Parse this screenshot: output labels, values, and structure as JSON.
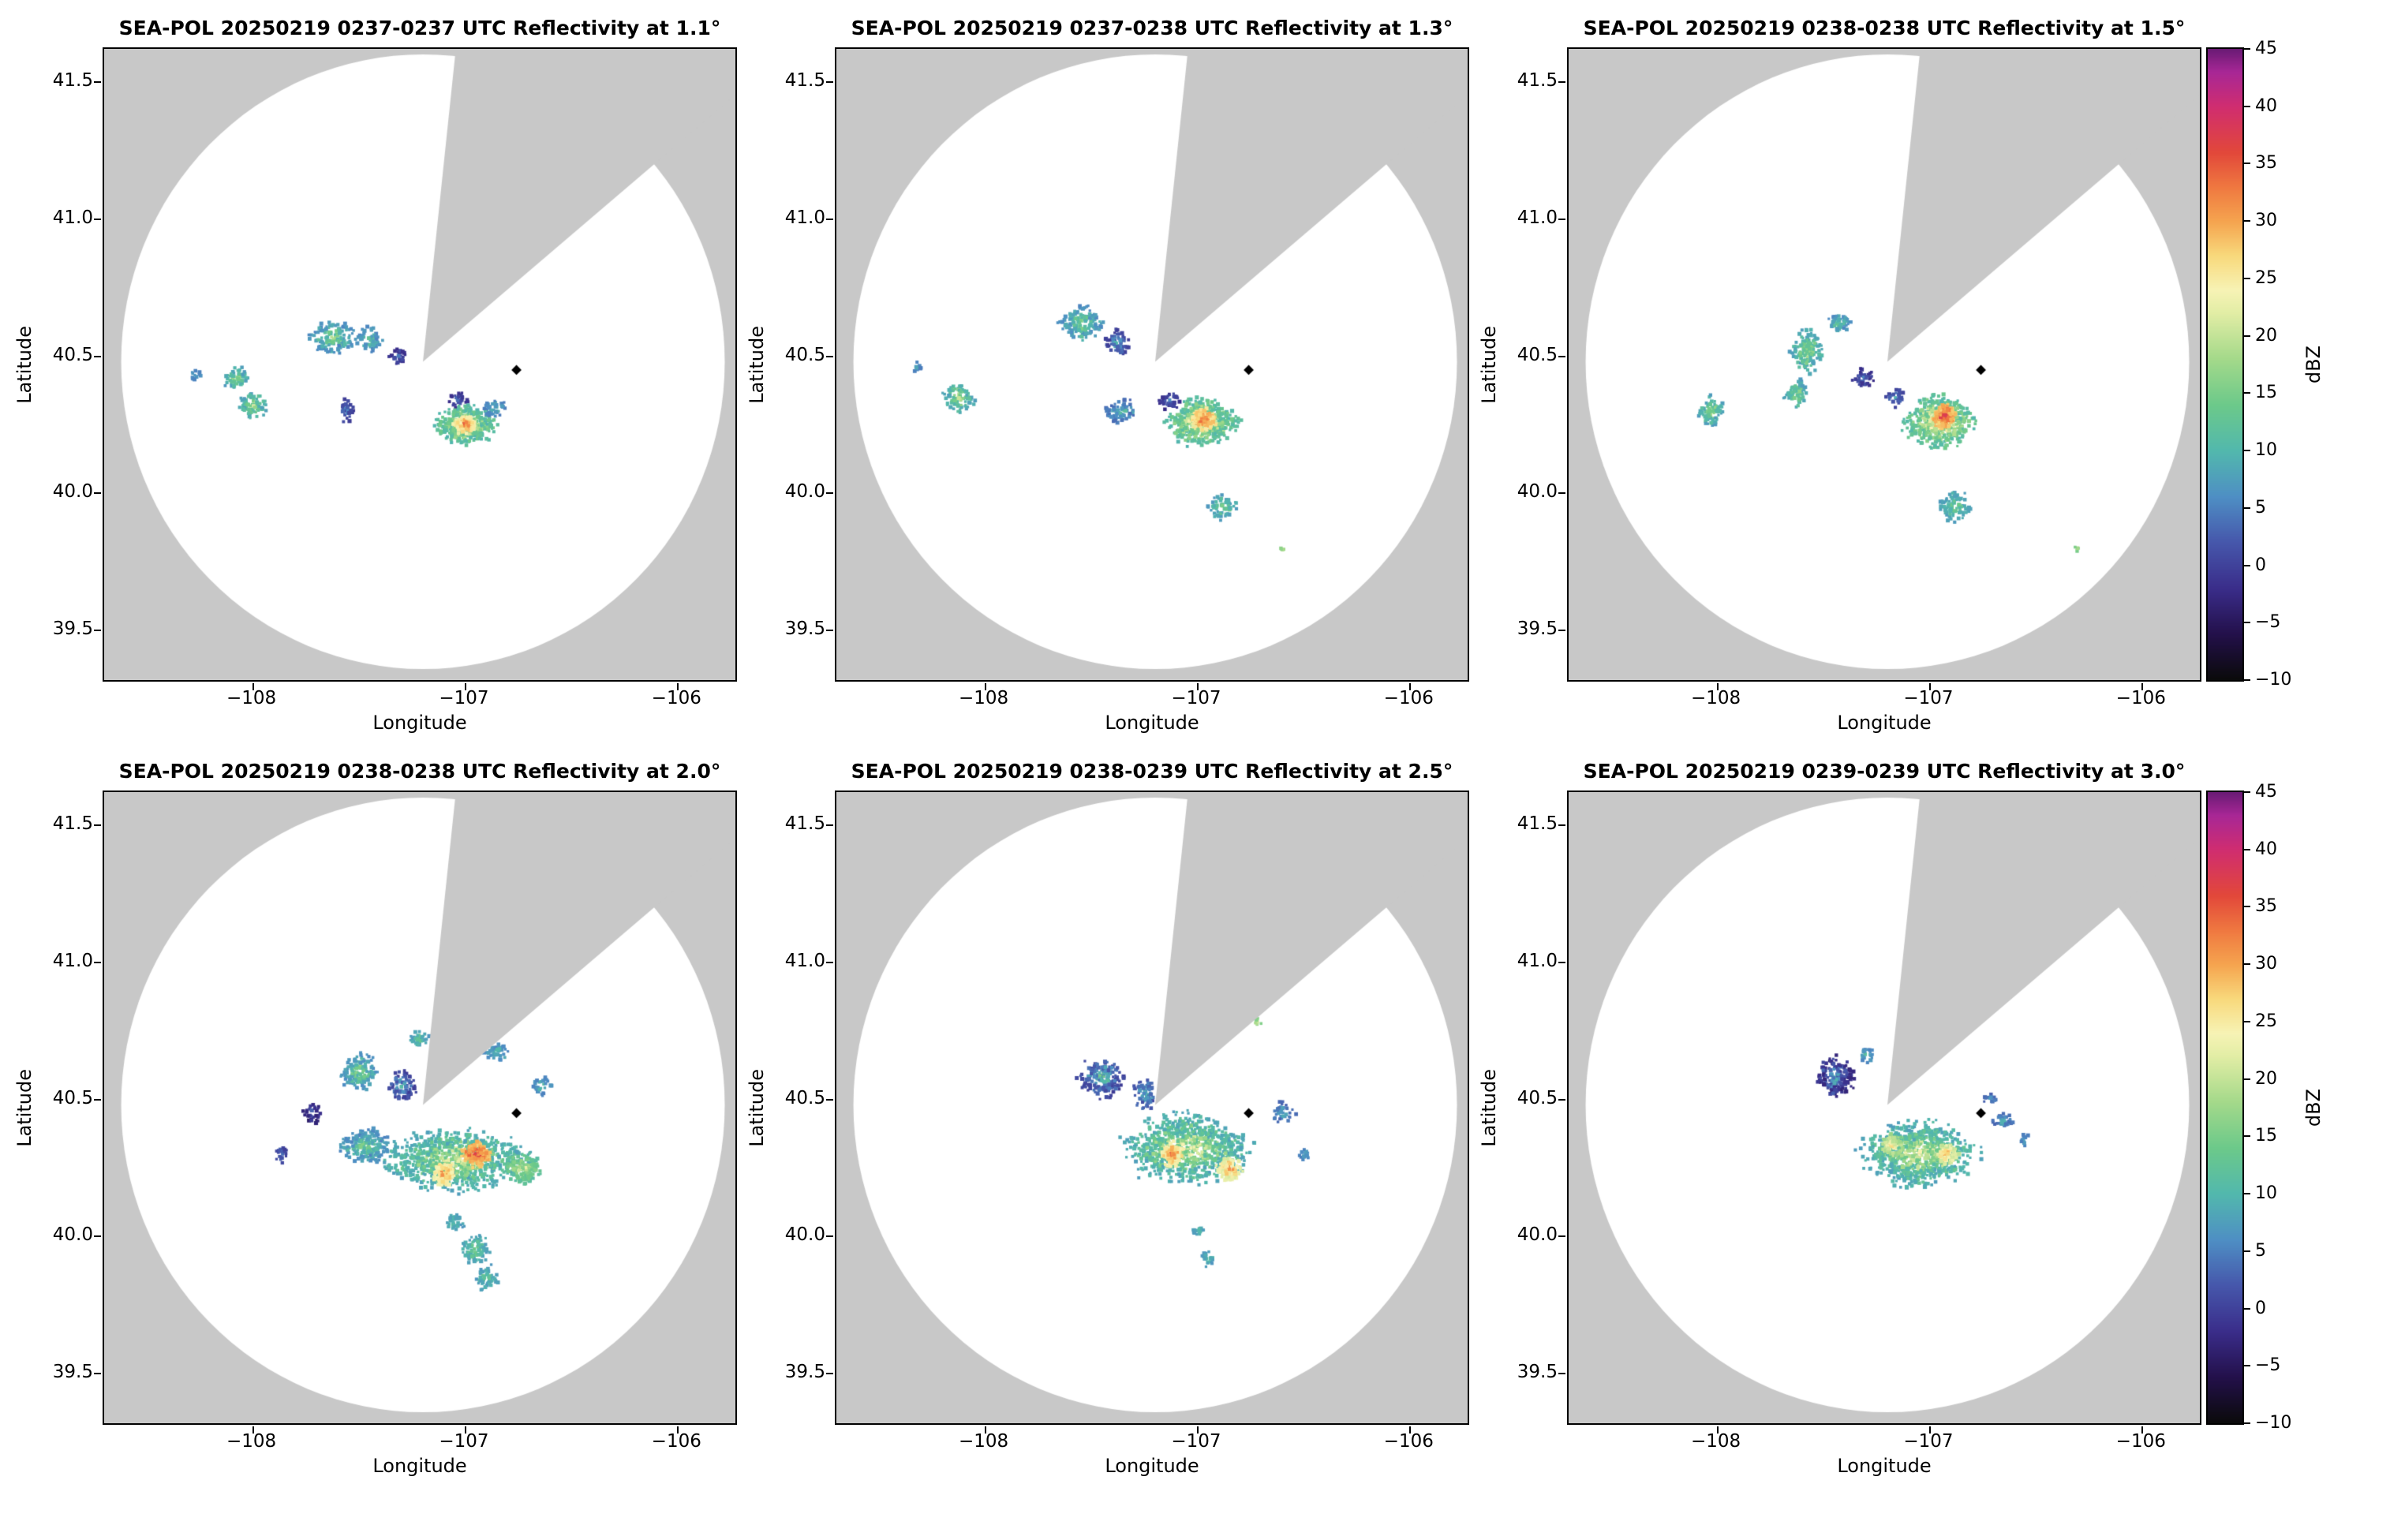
{
  "figure": {
    "xlabel": "Longitude",
    "ylabel": "Latitude",
    "xlim": [
      -108.7,
      -105.73
    ],
    "ylim": [
      39.32,
      41.62
    ],
    "xticks": [
      -108,
      -107,
      -106
    ],
    "xtick_labels": [
      "−108",
      "−107",
      "−106"
    ],
    "yticks": [
      39.5,
      40.0,
      40.5,
      41.0,
      41.5
    ],
    "ytick_labels": [
      "39.5",
      "40.0",
      "40.5",
      "41.0",
      "41.5"
    ],
    "colorbar": {
      "label": "dBZ",
      "min": -10,
      "max": 45,
      "ticks": [
        -10,
        -5,
        0,
        5,
        10,
        15,
        20,
        25,
        30,
        35,
        40,
        45
      ],
      "tick_labels": [
        "−10",
        "−5",
        "0",
        "5",
        "10",
        "15",
        "20",
        "25",
        "30",
        "35",
        "40",
        "45"
      ]
    }
  },
  "radar": {
    "name": "SEA-POL",
    "center_lon": -107.2,
    "center_lat": 40.48,
    "radius_lon_deg": 1.42,
    "radius_lat_deg": 1.12,
    "wedge_start_az": 6,
    "wedge_end_az": 50,
    "background_color": "#c8c8c8",
    "coverage_color": "#ffffff",
    "marker": {
      "lon": -106.76,
      "lat": 40.45,
      "shape": "diamond",
      "color": "#000000"
    }
  },
  "colormap": [
    [
      -10,
      "#0a0a0a"
    ],
    [
      -6,
      "#23104a"
    ],
    [
      -2,
      "#3a2d8a"
    ],
    [
      2,
      "#4657ab"
    ],
    [
      6,
      "#4e8fc4"
    ],
    [
      10,
      "#52b8ad"
    ],
    [
      14,
      "#6cc98a"
    ],
    [
      18,
      "#a4d98a"
    ],
    [
      22,
      "#e2eda5"
    ],
    [
      24,
      "#f7f3b5"
    ],
    [
      27,
      "#f8d97c"
    ],
    [
      30,
      "#f5a44f"
    ],
    [
      33,
      "#ef7840"
    ],
    [
      36,
      "#e2483a"
    ],
    [
      40,
      "#d02d70"
    ],
    [
      43,
      "#a82796"
    ],
    [
      45,
      "#6a1b75"
    ]
  ],
  "echo_fields": [
    "center_lon",
    "center_lat",
    "rx_deg",
    "ry_deg",
    "n_cells",
    "dbz_min",
    "dbz_max"
  ],
  "chart_data": [
    {
      "type": "heatmap",
      "title": "SEA-POL 20250219 0237-0237 UTC Reflectivity at 1.1°",
      "radar": "SEA-POL",
      "date": "20250219",
      "time_utc": "0237-0237",
      "elevation_deg": 1.1,
      "units": "dBZ",
      "echoes": [
        [
          -107.62,
          40.57,
          0.1,
          0.055,
          130,
          4,
          22
        ],
        [
          -107.45,
          40.56,
          0.055,
          0.04,
          60,
          4,
          18
        ],
        [
          -107.32,
          40.5,
          0.035,
          0.03,
          25,
          -3,
          8
        ],
        [
          -108.08,
          40.42,
          0.05,
          0.04,
          55,
          6,
          22
        ],
        [
          -108.0,
          40.32,
          0.06,
          0.05,
          80,
          6,
          24
        ],
        [
          -108.27,
          40.43,
          0.025,
          0.02,
          12,
          4,
          12
        ],
        [
          -107.56,
          40.3,
          0.03,
          0.045,
          28,
          -2,
          10
        ],
        [
          -107.03,
          40.34,
          0.04,
          0.03,
          30,
          -3,
          8
        ],
        [
          -107.0,
          40.25,
          0.13,
          0.065,
          380,
          8,
          32
        ],
        [
          -107.0,
          40.25,
          0.05,
          0.03,
          130,
          22,
          38
        ],
        [
          -106.86,
          40.31,
          0.05,
          0.03,
          40,
          4,
          15
        ]
      ]
    },
    {
      "type": "heatmap",
      "title": "SEA-POL 20250219 0237-0238 UTC Reflectivity at 1.3°",
      "radar": "SEA-POL",
      "date": "20250219",
      "time_utc": "0237-0238",
      "elevation_deg": 1.3,
      "units": "dBZ",
      "echoes": [
        [
          -107.55,
          40.62,
          0.09,
          0.06,
          140,
          4,
          22
        ],
        [
          -107.38,
          40.55,
          0.05,
          0.05,
          60,
          -2,
          14
        ],
        [
          -108.12,
          40.35,
          0.065,
          0.055,
          90,
          6,
          24
        ],
        [
          -108.32,
          40.46,
          0.02,
          0.02,
          10,
          4,
          10
        ],
        [
          -107.36,
          40.3,
          0.08,
          0.04,
          75,
          2,
          15
        ],
        [
          -107.13,
          40.34,
          0.05,
          0.03,
          40,
          -3,
          8
        ],
        [
          -106.98,
          40.26,
          0.15,
          0.075,
          500,
          8,
          34
        ],
        [
          -106.97,
          40.27,
          0.05,
          0.035,
          150,
          24,
          40
        ],
        [
          -106.88,
          39.95,
          0.06,
          0.045,
          65,
          6,
          20
        ],
        [
          -106.6,
          39.8,
          0.012,
          0.01,
          4,
          16,
          22
        ]
      ]
    },
    {
      "type": "heatmap",
      "title": "SEA-POL 20250219 0238-0238 UTC Reflectivity at 1.5°",
      "radar": "SEA-POL",
      "date": "20250219",
      "time_utc": "0238-0238",
      "elevation_deg": 1.5,
      "units": "dBZ",
      "echoes": [
        [
          -107.58,
          40.52,
          0.065,
          0.075,
          150,
          6,
          24
        ],
        [
          -107.63,
          40.36,
          0.05,
          0.05,
          70,
          6,
          22
        ],
        [
          -107.43,
          40.62,
          0.05,
          0.04,
          55,
          4,
          18
        ],
        [
          -108.03,
          40.3,
          0.05,
          0.05,
          75,
          6,
          24
        ],
        [
          -107.31,
          40.42,
          0.05,
          0.03,
          40,
          -3,
          9
        ],
        [
          -107.16,
          40.35,
          0.04,
          0.03,
          35,
          -1,
          11
        ],
        [
          -106.95,
          40.26,
          0.15,
          0.085,
          520,
          8,
          36
        ],
        [
          -106.93,
          40.28,
          0.05,
          0.04,
          160,
          26,
          42
        ],
        [
          -106.88,
          39.95,
          0.065,
          0.05,
          85,
          6,
          20
        ],
        [
          -106.31,
          39.8,
          0.012,
          0.01,
          4,
          14,
          20
        ]
      ]
    },
    {
      "type": "heatmap",
      "title": "SEA-POL 20250219 0238-0238 UTC Reflectivity at 2.0°",
      "radar": "SEA-POL",
      "date": "20250219",
      "time_utc": "0238-0238",
      "elevation_deg": 2.0,
      "units": "dBZ",
      "echoes": [
        [
          -107.05,
          40.28,
          0.3,
          0.1,
          850,
          6,
          28
        ],
        [
          -106.95,
          40.3,
          0.06,
          0.04,
          180,
          26,
          42
        ],
        [
          -107.1,
          40.23,
          0.05,
          0.04,
          120,
          22,
          36
        ],
        [
          -106.73,
          40.25,
          0.08,
          0.05,
          150,
          10,
          26
        ],
        [
          -107.47,
          40.33,
          0.11,
          0.055,
          200,
          4,
          20
        ],
        [
          -107.5,
          40.6,
          0.08,
          0.06,
          140,
          4,
          22
        ],
        [
          -107.3,
          40.55,
          0.06,
          0.05,
          80,
          -2,
          14
        ],
        [
          -107.22,
          40.72,
          0.04,
          0.03,
          35,
          6,
          18
        ],
        [
          -106.85,
          40.67,
          0.05,
          0.03,
          40,
          4,
          18
        ],
        [
          -106.64,
          40.55,
          0.04,
          0.03,
          30,
          4,
          15
        ],
        [
          -107.72,
          40.45,
          0.04,
          0.04,
          30,
          -5,
          6
        ],
        [
          -107.87,
          40.3,
          0.03,
          0.03,
          20,
          -2,
          10
        ],
        [
          -106.95,
          39.95,
          0.065,
          0.05,
          90,
          6,
          20
        ],
        [
          -106.9,
          39.85,
          0.05,
          0.04,
          50,
          6,
          18
        ],
        [
          -107.05,
          40.05,
          0.04,
          0.03,
          40,
          6,
          16
        ]
      ]
    },
    {
      "type": "heatmap",
      "title": "SEA-POL 20250219 0238-0239 UTC Reflectivity at 2.5°",
      "radar": "SEA-POL",
      "date": "20250219",
      "time_utc": "0238-0239",
      "elevation_deg": 2.5,
      "units": "dBZ",
      "echoes": [
        [
          -107.05,
          40.32,
          0.27,
          0.115,
          850,
          6,
          28
        ],
        [
          -107.12,
          40.3,
          0.05,
          0.04,
          120,
          22,
          38
        ],
        [
          -106.85,
          40.25,
          0.06,
          0.04,
          130,
          20,
          36
        ],
        [
          -107.45,
          40.58,
          0.1,
          0.065,
          170,
          -2,
          18
        ],
        [
          -107.25,
          40.52,
          0.06,
          0.05,
          70,
          0,
          15
        ],
        [
          -106.6,
          40.45,
          0.05,
          0.035,
          40,
          2,
          12
        ],
        [
          -106.5,
          40.3,
          0.03,
          0.02,
          15,
          4,
          12
        ],
        [
          -106.95,
          39.92,
          0.03,
          0.03,
          25,
          6,
          16
        ],
        [
          -107.0,
          40.02,
          0.03,
          0.02,
          20,
          6,
          14
        ],
        [
          -106.72,
          40.78,
          0.02,
          0.015,
          8,
          14,
          24
        ]
      ]
    },
    {
      "type": "heatmap",
      "title": "SEA-POL 20250219 0239-0239 UTC Reflectivity at 3.0°",
      "radar": "SEA-POL",
      "date": "20250219",
      "time_utc": "0239-0239",
      "elevation_deg": 3.0,
      "units": "dBZ",
      "echoes": [
        [
          -107.05,
          40.3,
          0.24,
          0.105,
          780,
          6,
          28
        ],
        [
          -106.92,
          40.3,
          0.05,
          0.04,
          110,
          18,
          34
        ],
        [
          -107.18,
          40.33,
          0.05,
          0.04,
          90,
          16,
          30
        ],
        [
          -107.45,
          40.58,
          0.08,
          0.07,
          160,
          -5,
          14
        ],
        [
          -106.65,
          40.42,
          0.05,
          0.03,
          35,
          2,
          12
        ],
        [
          -106.72,
          40.5,
          0.03,
          0.02,
          15,
          2,
          10
        ],
        [
          -107.3,
          40.66,
          0.03,
          0.03,
          22,
          4,
          15
        ],
        [
          -106.55,
          40.35,
          0.025,
          0.02,
          12,
          4,
          10
        ]
      ]
    }
  ]
}
